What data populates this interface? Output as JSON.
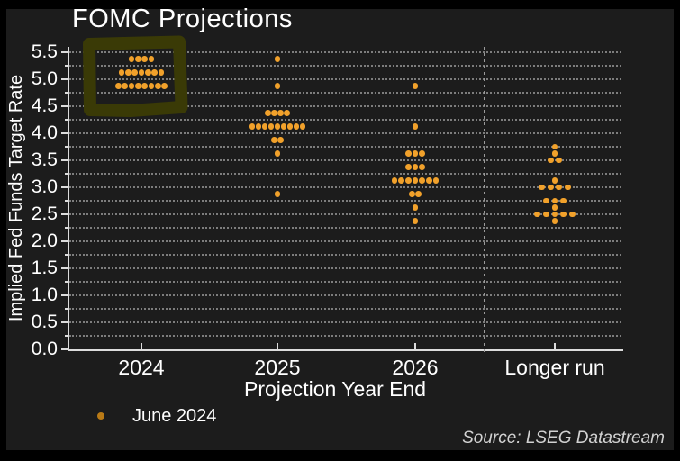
{
  "title": "FOMC Projections",
  "axes": {
    "y_label": "Implied Fed Funds Target Rate",
    "x_label": "Projection Year End",
    "y_tick_labels": [
      "5.5",
      "5.0",
      "4.5",
      "4.0",
      "3.5",
      "3.0",
      "2.5",
      "2.0",
      "1.5",
      "1.0",
      "0.5",
      "0.0"
    ],
    "x_categories": [
      "2024",
      "2025",
      "2026",
      "Longer run"
    ]
  },
  "legend": {
    "label": "June 2024"
  },
  "source": "Source: LSEG Datastream",
  "colors": {
    "background": "#1c1c1c",
    "outer_border": "#000000",
    "dot": "#f1a12b",
    "legend_dot": "#b97a16",
    "text": "#ffffff",
    "source_text": "#d2d2d2",
    "gridline": "#8f8f8f",
    "axis": "#dcdcdc",
    "highlight_box": "#3a3a06"
  },
  "chart_data": {
    "type": "scatter",
    "subtype": "dot-plot",
    "title": "FOMC Projections",
    "xlabel": "Projection Year End",
    "ylabel": "Implied Fed Funds Target Rate",
    "ylim": [
      0,
      5.5
    ],
    "y_tick_step": 0.5,
    "gridline_step": 0.25,
    "grid": "dotted horizontal",
    "legend_entries": [
      "June 2024"
    ],
    "legend_position": "bottom-left",
    "categories": [
      "2024",
      "2025",
      "2026",
      "Longer run"
    ],
    "distributions": [
      {
        "category": "2024",
        "dots": [
          {
            "rate": 5.375,
            "count": 4
          },
          {
            "rate": 5.125,
            "count": 7
          },
          {
            "rate": 4.875,
            "count": 8
          }
        ]
      },
      {
        "category": "2025",
        "dots": [
          {
            "rate": 5.375,
            "count": 1
          },
          {
            "rate": 4.875,
            "count": 1
          },
          {
            "rate": 4.375,
            "count": 4
          },
          {
            "rate": 4.125,
            "count": 9
          },
          {
            "rate": 3.875,
            "count": 2
          },
          {
            "rate": 3.625,
            "count": 1
          },
          {
            "rate": 2.875,
            "count": 1
          }
        ]
      },
      {
        "category": "2026",
        "dots": [
          {
            "rate": 4.875,
            "count": 1
          },
          {
            "rate": 4.125,
            "count": 1
          },
          {
            "rate": 3.625,
            "count": 3
          },
          {
            "rate": 3.375,
            "count": 3
          },
          {
            "rate": 3.125,
            "count": 7
          },
          {
            "rate": 2.875,
            "count": 2
          },
          {
            "rate": 2.625,
            "count": 1
          },
          {
            "rate": 2.375,
            "count": 1
          }
        ]
      },
      {
        "category": "Longer run",
        "dots": [
          {
            "rate": 3.75,
            "count": 1
          },
          {
            "rate": 3.625,
            "count": 1
          },
          {
            "rate": 3.5,
            "count": 2
          },
          {
            "rate": 3.125,
            "count": 1
          },
          {
            "rate": 3.0,
            "count": 4
          },
          {
            "rate": 2.75,
            "count": 3
          },
          {
            "rate": 2.625,
            "count": 1
          },
          {
            "rate": 2.5,
            "count": 5
          },
          {
            "rate": 2.375,
            "count": 1
          }
        ]
      },
      {
        "category": "separator",
        "note": "dashed vertical divider between 2026 and Longer run"
      }
    ],
    "annotation": {
      "type": "hand-drawn box",
      "around": "2024 dot cluster",
      "color": "#3a3a06"
    }
  }
}
